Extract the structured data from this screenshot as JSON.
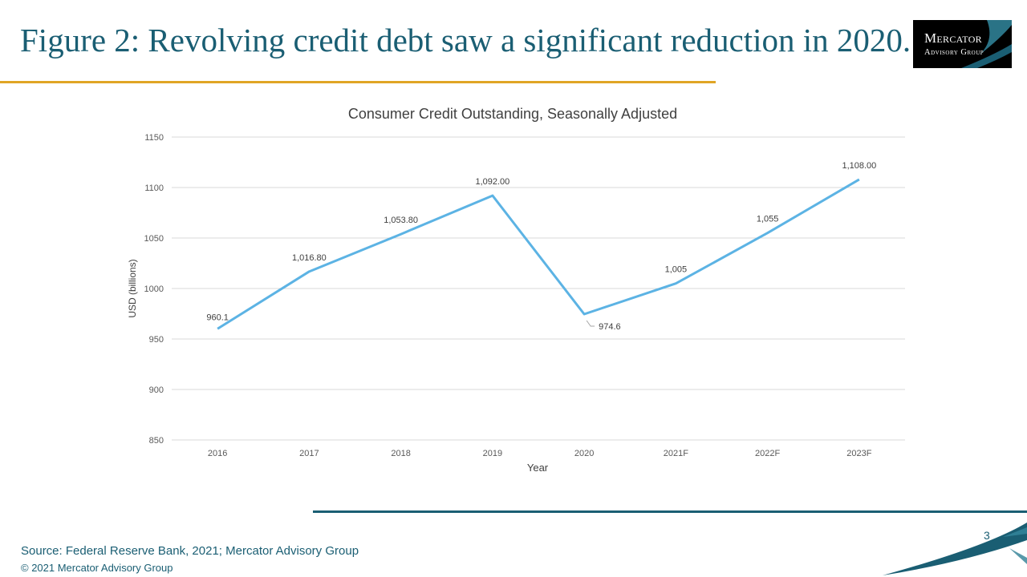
{
  "slide": {
    "title": "Figure 2: Revolving credit debt saw a significant reduction in 2020.",
    "logo": {
      "line1": "Mercator",
      "line2": "Advisory Group"
    },
    "source": "Source: Federal Reserve Bank, 2021; Mercator Advisory Group",
    "copyright": "© 2021 Mercator Advisory Group",
    "page_number": "3"
  },
  "colors": {
    "accent_gold": "#e0a525",
    "brand_teal": "#1a5e73",
    "series_line": "#5cb3e4"
  },
  "chart_data": {
    "type": "line",
    "title": "Consumer Credit Outstanding, Seasonally Adjusted",
    "xlabel": "Year",
    "ylabel": "USD (billions)",
    "categories": [
      "2016",
      "2017",
      "2018",
      "2019",
      "2020",
      "2021F",
      "2022F",
      "2023F"
    ],
    "series": [
      {
        "values": [
          960.1,
          1016.8,
          1053.8,
          1092.0,
          974.6,
          1005,
          1055,
          1108.0
        ],
        "data_labels": [
          "960.1",
          "1,016.80",
          "1,053.80",
          "1,092.00",
          "974.6",
          "1,005",
          "1,055",
          "1,108.00"
        ]
      }
    ],
    "ylim": [
      850,
      1150
    ],
    "yticks": [
      "850",
      "900",
      "950",
      "1000",
      "1050",
      "1100",
      "1150"
    ],
    "grid": true,
    "legend": "none"
  }
}
